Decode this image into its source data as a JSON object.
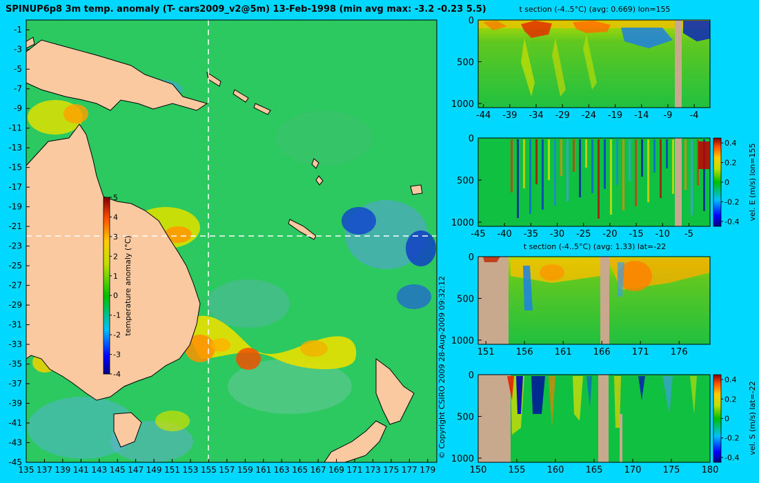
{
  "title": "SPINUP6p8 3m temp. anomaly (T- cars2009_v2@5m) 13-Feb-1998 (min avg max: -3.2 -0.23 5.5)",
  "copyright": "© Copyright CSIRO 2009   28-Aug-2009 09:32:12",
  "colors": {
    "background": "#00d8ff",
    "land": "#fbc9a0",
    "section_land": "#c9a98e",
    "crosshair": "#ffffff"
  },
  "chart_data": [
    {
      "type": "heatmap",
      "name": "map",
      "x_ticks": [
        "135",
        "137",
        "139",
        "141",
        "143",
        "145",
        "147",
        "149",
        "151",
        "153",
        "155",
        "157",
        "159",
        "161",
        "163",
        "165",
        "167",
        "169",
        "171",
        "173",
        "175",
        "177",
        "179"
      ],
      "y_ticks": [
        "-1",
        "-3",
        "-5",
        "-7",
        "-9",
        "-11",
        "-13",
        "-15",
        "-17",
        "-19",
        "-21",
        "-23",
        "-25",
        "-27",
        "-29",
        "-31",
        "-33",
        "-35",
        "-37",
        "-39",
        "-41",
        "-43",
        "-45"
      ],
      "xlim": [
        135,
        180
      ],
      "ylim": [
        -45,
        0
      ],
      "crosshair": {
        "lon": 155,
        "lat": -22
      },
      "colorbar": {
        "label": "temperature anomaly (°C)",
        "ticks": [
          "5",
          "4",
          "3",
          "2",
          "1",
          "0",
          "-1",
          "-2",
          "-3",
          "-4"
        ],
        "range": [
          -4,
          5
        ]
      }
    },
    {
      "type": "heatmap",
      "name": "section-1",
      "title": "t section (-4..5°C) (avg: 0.669) lon=155",
      "x_ticks": [
        "-44",
        "-39",
        "-34",
        "-29",
        "-24",
        "-19",
        "-14",
        "-9",
        "-4"
      ],
      "y_ticks": [
        "0",
        "500",
        "1000"
      ],
      "xlim": [
        -45,
        -1
      ],
      "ylim": [
        1050,
        0
      ]
    },
    {
      "type": "heatmap",
      "name": "section-2",
      "x_ticks": [
        "-45",
        "-40",
        "-35",
        "-30",
        "-25",
        "-20",
        "-15",
        "-10",
        "-5"
      ],
      "y_ticks": [
        "0",
        "500",
        "1000"
      ],
      "xlim": [
        -45,
        -1
      ],
      "ylim": [
        1050,
        0
      ],
      "colorbar": {
        "label": "vel. E (m/s) lon=155",
        "ticks": [
          "0.4",
          "0.2",
          "0",
          "-0.2",
          "-0.4"
        ],
        "range": [
          -0.45,
          0.45
        ]
      }
    },
    {
      "type": "heatmap",
      "name": "section-3",
      "title": "t section (-4..5°C) (avg: 1.33) lat=-22",
      "x_ticks": [
        "151",
        "156",
        "161",
        "166",
        "171",
        "176"
      ],
      "y_ticks": [
        "0",
        "500",
        "1000"
      ],
      "xlim": [
        150,
        180
      ],
      "ylim": [
        1050,
        0
      ]
    },
    {
      "type": "heatmap",
      "name": "section-4",
      "x_ticks": [
        "150",
        "155",
        "160",
        "165",
        "170",
        "175",
        "180"
      ],
      "y_ticks": [
        "0",
        "500",
        "1000"
      ],
      "xlim": [
        150,
        180
      ],
      "ylim": [
        1050,
        0
      ],
      "colorbar": {
        "label": "vel. S (m/s) lat=-22",
        "ticks": [
          "0.4",
          "0.2",
          "0",
          "-0.2",
          "-0.4"
        ],
        "range": [
          -0.45,
          0.45
        ]
      }
    }
  ]
}
